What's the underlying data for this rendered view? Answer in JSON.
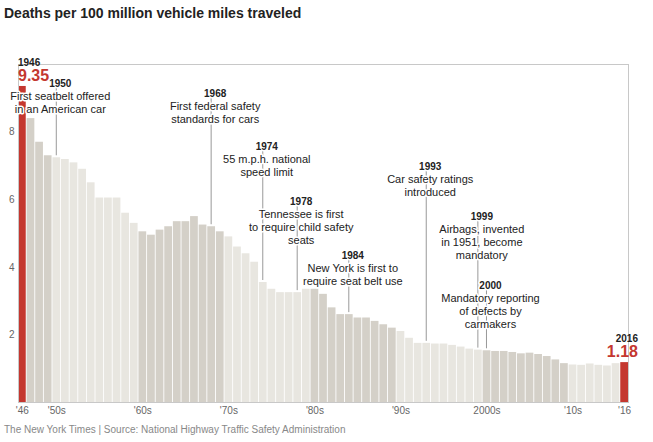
{
  "chart_data": {
    "type": "bar",
    "title": "Deaths per 100 million vehicle miles traveled",
    "caption": "The New York Times | Source: National Highway Traffic Safety Administration",
    "x": [
      1946,
      1947,
      1948,
      1949,
      1950,
      1951,
      1952,
      1953,
      1954,
      1955,
      1956,
      1957,
      1958,
      1959,
      1960,
      1961,
      1962,
      1963,
      1964,
      1965,
      1966,
      1967,
      1968,
      1969,
      1970,
      1971,
      1972,
      1973,
      1974,
      1975,
      1976,
      1977,
      1978,
      1979,
      1980,
      1981,
      1982,
      1983,
      1984,
      1985,
      1986,
      1987,
      1988,
      1989,
      1990,
      1991,
      1992,
      1993,
      1994,
      1995,
      1996,
      1997,
      1998,
      1999,
      2000,
      2001,
      2002,
      2003,
      2004,
      2005,
      2006,
      2007,
      2008,
      2009,
      2010,
      2011,
      2012,
      2013,
      2014,
      2015,
      2016
    ],
    "values": [
      9.35,
      8.4,
      7.7,
      7.3,
      7.24,
      7.19,
      7.09,
      6.9,
      6.5,
      6.05,
      6.05,
      6.05,
      5.6,
      5.3,
      5.05,
      4.95,
      5.1,
      5.2,
      5.35,
      5.35,
      5.5,
      5.25,
      5.2,
      5.05,
      4.9,
      4.6,
      4.4,
      4.15,
      3.55,
      3.35,
      3.25,
      3.25,
      3.25,
      3.35,
      3.35,
      3.2,
      2.8,
      2.6,
      2.6,
      2.5,
      2.5,
      2.4,
      2.3,
      2.2,
      2.1,
      1.9,
      1.75,
      1.75,
      1.73,
      1.73,
      1.69,
      1.64,
      1.58,
      1.55,
      1.53,
      1.51,
      1.51,
      1.48,
      1.44,
      1.46,
      1.42,
      1.36,
      1.26,
      1.15,
      1.11,
      1.1,
      1.14,
      1.1,
      1.08,
      1.15,
      1.18
    ],
    "colors": [
      "#c4372f",
      "#d4d0c8",
      "#d4d0c8",
      "#d4d0c8",
      "#e8e6e0",
      "#e8e6e0",
      "#e8e6e0",
      "#e8e6e0",
      "#e8e6e0",
      "#e8e6e0",
      "#e8e6e0",
      "#e8e6e0",
      "#e8e6e0",
      "#e8e6e0",
      "#d4d0c8",
      "#d4d0c8",
      "#d4d0c8",
      "#d4d0c8",
      "#d4d0c8",
      "#d4d0c8",
      "#d4d0c8",
      "#d4d0c8",
      "#d4d0c8",
      "#d4d0c8",
      "#e8e6e0",
      "#e8e6e0",
      "#e8e6e0",
      "#e8e6e0",
      "#e8e6e0",
      "#e8e6e0",
      "#e8e6e0",
      "#e8e6e0",
      "#e8e6e0",
      "#e8e6e0",
      "#d4d0c8",
      "#d4d0c8",
      "#d4d0c8",
      "#d4d0c8",
      "#d4d0c8",
      "#d4d0c8",
      "#d4d0c8",
      "#d4d0c8",
      "#d4d0c8",
      "#d4d0c8",
      "#e8e6e0",
      "#e8e6e0",
      "#e8e6e0",
      "#e8e6e0",
      "#e8e6e0",
      "#e8e6e0",
      "#e8e6e0",
      "#e8e6e0",
      "#e8e6e0",
      "#e8e6e0",
      "#d4d0c8",
      "#d4d0c8",
      "#d4d0c8",
      "#d4d0c8",
      "#d4d0c8",
      "#d4d0c8",
      "#d4d0c8",
      "#d4d0c8",
      "#d4d0c8",
      "#d4d0c8",
      "#e8e6e0",
      "#e8e6e0",
      "#e8e6e0",
      "#e8e6e0",
      "#e8e6e0",
      "#e8e6e0",
      "#c4372f"
    ],
    "ylim": [
      0,
      10
    ],
    "yticks": [
      2,
      4,
      6,
      8
    ],
    "xticks": [
      {
        "value": 1946,
        "label": "'46"
      },
      {
        "value": 1950,
        "label": "'50s"
      },
      {
        "value": 1960,
        "label": "'60s"
      },
      {
        "value": 1970,
        "label": "'70s"
      },
      {
        "value": 1980,
        "label": "'80s"
      },
      {
        "value": 1990,
        "label": "'90s"
      },
      {
        "value": 2000,
        "label": "2000s"
      },
      {
        "value": 2010,
        "label": "'10s"
      },
      {
        "value": 2016,
        "label": "'16"
      }
    ],
    "grid": false,
    "highlights": [
      {
        "x": 1946,
        "label": "1946",
        "value_label": "9.35"
      },
      {
        "x": 2016,
        "label": "2016",
        "value_label": "1.18"
      }
    ],
    "annotations": [
      {
        "x": 1950,
        "label": "1950",
        "text": [
          "First seatbelt offered",
          "in an American car"
        ]
      },
      {
        "x": 1968,
        "label": "1968",
        "text": [
          "First federal safety",
          "standards for cars"
        ]
      },
      {
        "x": 1974,
        "label": "1974",
        "text": [
          "55 m.p.h. national",
          "speed limit"
        ]
      },
      {
        "x": 1978,
        "label": "1978",
        "text": [
          "Tennessee is first",
          "to require child safety",
          "seats"
        ]
      },
      {
        "x": 1984,
        "label": "1984",
        "text": [
          "New York is first to",
          "require seat belt use"
        ]
      },
      {
        "x": 1993,
        "label": "1993",
        "text": [
          "Car safety ratings",
          "introduced"
        ]
      },
      {
        "x": 1999,
        "label": "1999",
        "text": [
          "Airbags, invented",
          "in 1951, become",
          "mandatory"
        ]
      },
      {
        "x": 2000,
        "label": "2000",
        "text": [
          "Mandatory reporting",
          "of defects by",
          "carmakers"
        ]
      }
    ]
  }
}
